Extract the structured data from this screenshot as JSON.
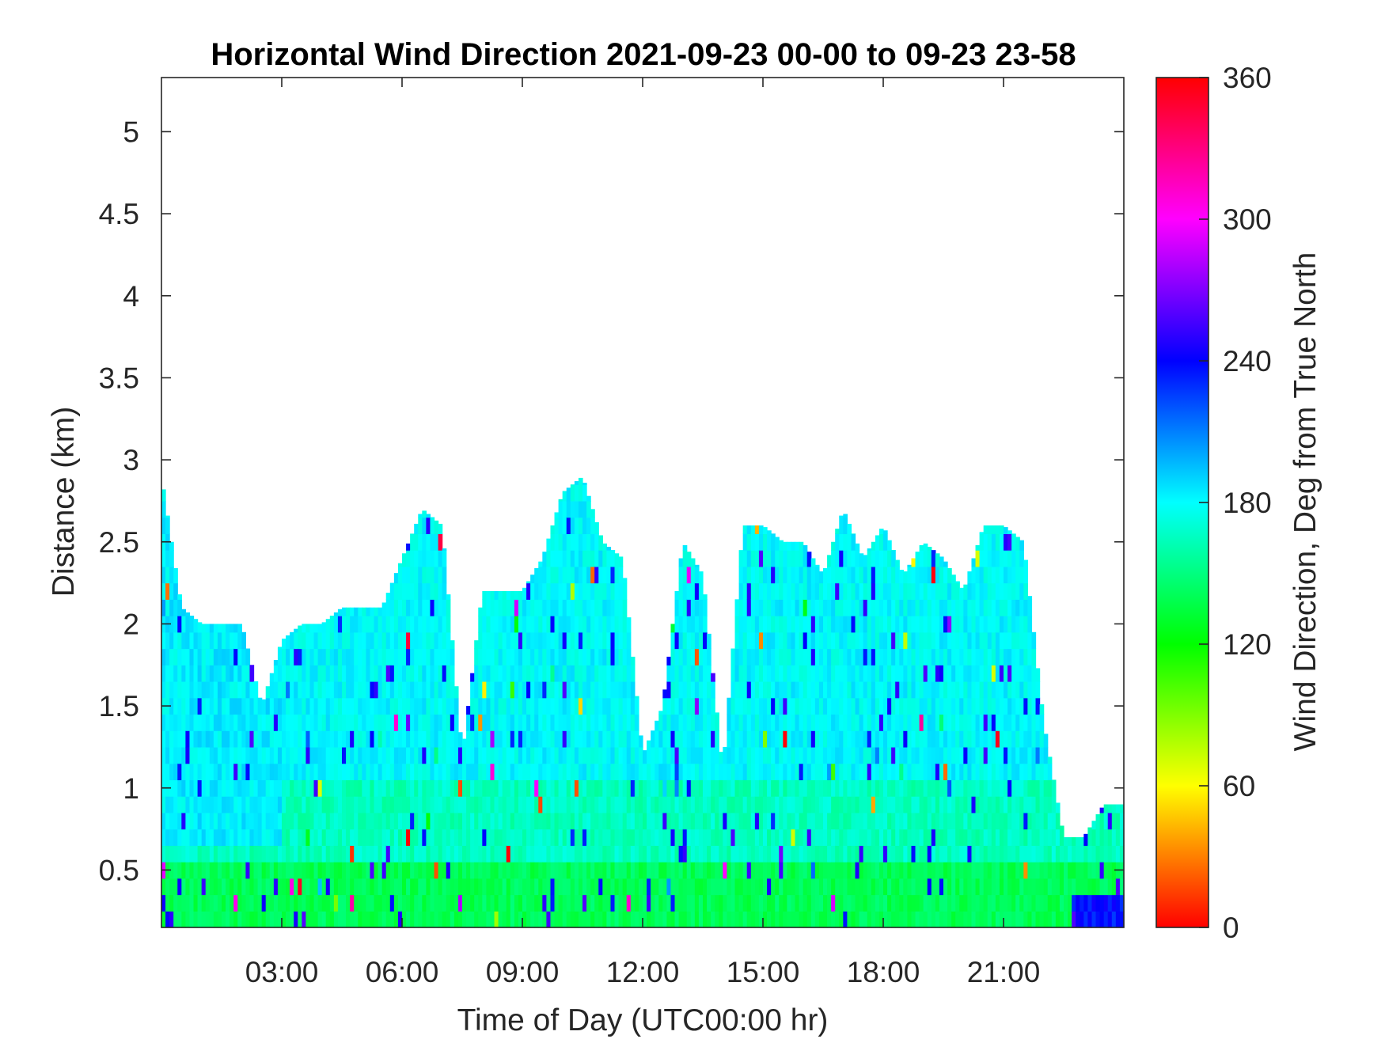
{
  "chart_data": {
    "type": "heatmap",
    "title": "Horizontal Wind Direction 2021-09-23 00-00 to 09-23 23-58",
    "xlabel": "Time of Day (UTC00:00 hr)",
    "ylabel": "Distance (km)",
    "colorbar_label": "Wind Direction, Deg from True North",
    "x_unit": "hours",
    "xlim": [
      0,
      24
    ],
    "ylim": [
      0.15,
      5.33
    ],
    "x_ticks": [
      3,
      6,
      9,
      12,
      15,
      18,
      21
    ],
    "x_tick_labels": [
      "03:00",
      "06:00",
      "09:00",
      "12:00",
      "15:00",
      "18:00",
      "21:00"
    ],
    "y_ticks": [
      0.5,
      1,
      1.5,
      2,
      2.5,
      3,
      3.5,
      4,
      4.5,
      5
    ],
    "y_tick_labels": [
      "0.5",
      "1",
      "1.5",
      "2",
      "2.5",
      "3",
      "3.5",
      "4",
      "4.5",
      "5"
    ],
    "colorbar_range": [
      0,
      360
    ],
    "colorbar_ticks": [
      0,
      60,
      120,
      180,
      240,
      300,
      360
    ],
    "colorbar_tick_labels": [
      "0",
      "60",
      "120",
      "180",
      "240",
      "300",
      "360"
    ],
    "colormap": [
      "#ff0000",
      "#ffff00",
      "#00ff00",
      "#00ffff",
      "#0000ff",
      "#ff00ff",
      "#ff0000"
    ],
    "grid": false,
    "data_top_km_by_hour": {
      "hours": [
        0,
        0.5,
        1,
        1.5,
        2,
        2.5,
        3,
        3.5,
        4,
        4.5,
        5,
        5.5,
        6,
        6.5,
        7,
        7.5,
        8,
        8.5,
        9,
        9.5,
        10,
        10.5,
        11,
        11.5,
        12,
        12.5,
        13,
        13.5,
        14,
        14.5,
        15,
        15.5,
        16,
        16.5,
        17,
        17.5,
        18,
        18.5,
        19,
        19.5,
        20,
        20.5,
        21,
        21.5,
        22,
        22.5,
        23,
        23.5,
        24
      ],
      "top_km": [
        2.9,
        2.1,
        2.0,
        2.0,
        2.0,
        1.5,
        1.9,
        2.0,
        2.0,
        2.1,
        2.1,
        2.1,
        2.4,
        2.7,
        2.6,
        1.2,
        2.2,
        2.2,
        2.2,
        2.4,
        2.8,
        2.9,
        2.5,
        2.4,
        1.2,
        1.5,
        2.5,
        2.3,
        1.1,
        2.6,
        2.6,
        2.5,
        2.5,
        2.3,
        2.7,
        2.4,
        2.6,
        2.3,
        2.5,
        2.4,
        2.2,
        2.6,
        2.6,
        2.5,
        1.4,
        0.7,
        0.7,
        0.9,
        0.9
      ]
    },
    "dominant_direction_deg": [
      {
        "height_range_km": [
          0.15,
          0.5
        ],
        "deg": 140
      },
      {
        "height_range_km": [
          0.5,
          1.0
        ],
        "deg": 165
      },
      {
        "height_range_km": [
          1.0,
          3.0
        ],
        "deg": 180
      }
    ],
    "near_surface_late_day_deg": 235
  }
}
